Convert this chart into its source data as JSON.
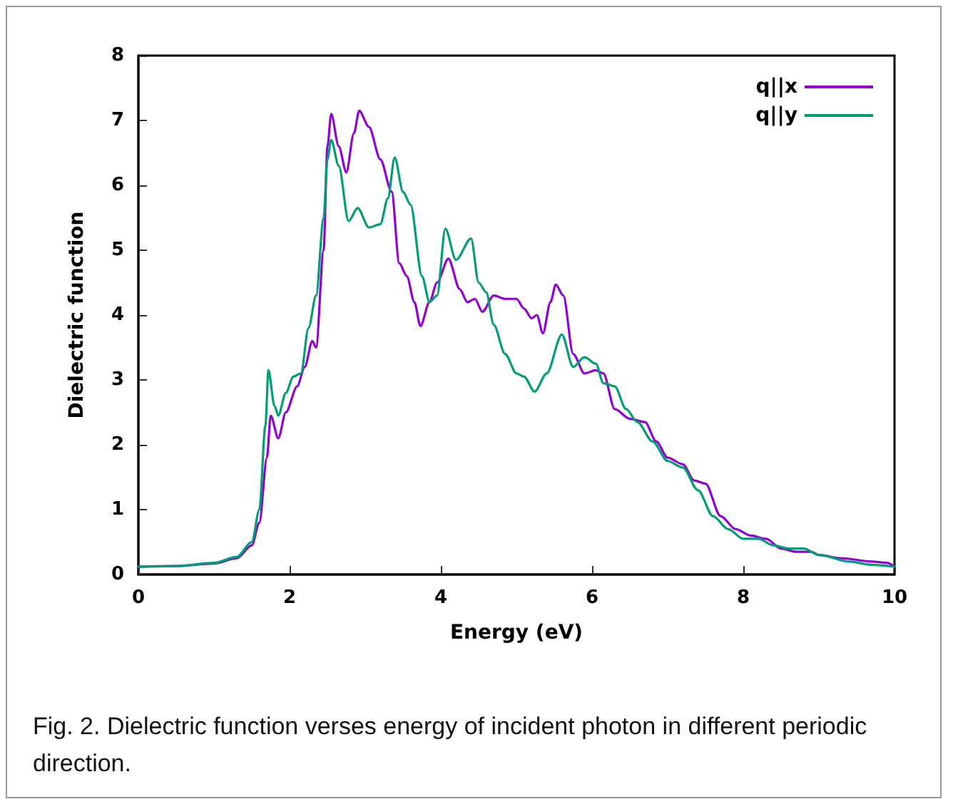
{
  "chart_data": {
    "type": "line",
    "xlabel": "Energy (eV)",
    "ylabel": "Dielectric function",
    "xlim": [
      0,
      10
    ],
    "xticks": [
      0,
      2,
      4,
      6,
      8,
      10
    ],
    "ylim": [
      0,
      8
    ],
    "yticks": [
      0,
      1,
      2,
      3,
      4,
      5,
      6,
      7,
      8
    ],
    "legend": "top right",
    "grid": false,
    "marker": "none",
    "line_style": "solid",
    "annotations": [
      "Fig. 2. Dielectric function verses energy of incident photon in different periodic direction."
    ],
    "series": [
      {
        "name": "q||x",
        "color": "#9400d3",
        "x": [
          0,
          0.5,
          1.0,
          1.3,
          1.5,
          1.6,
          1.7,
          1.75,
          1.85,
          1.95,
          2.1,
          2.2,
          2.3,
          2.35,
          2.45,
          2.5,
          2.55,
          2.65,
          2.75,
          2.85,
          2.92,
          3.05,
          3.2,
          3.35,
          3.45,
          3.55,
          3.65,
          3.73,
          3.85,
          3.95,
          4.1,
          4.25,
          4.35,
          4.45,
          4.55,
          4.7,
          4.85,
          5.0,
          5.1,
          5.2,
          5.27,
          5.35,
          5.45,
          5.52,
          5.62,
          5.75,
          5.9,
          6.05,
          6.15,
          6.3,
          6.5,
          6.7,
          6.85,
          7.0,
          7.2,
          7.35,
          7.5,
          7.7,
          7.9,
          8.1,
          8.3,
          8.5,
          8.7,
          8.9,
          9.0,
          9.3,
          9.7,
          9.9,
          10
        ],
        "values": [
          0.12,
          0.13,
          0.17,
          0.25,
          0.45,
          0.8,
          1.8,
          2.45,
          2.1,
          2.5,
          2.9,
          3.2,
          3.6,
          3.5,
          5.0,
          6.6,
          7.1,
          6.6,
          6.2,
          6.8,
          7.15,
          6.9,
          6.4,
          5.9,
          4.8,
          4.6,
          4.2,
          3.83,
          4.2,
          4.5,
          4.87,
          4.4,
          4.2,
          4.25,
          4.05,
          4.3,
          4.25,
          4.25,
          4.1,
          3.95,
          4.0,
          3.72,
          4.2,
          4.47,
          4.3,
          3.4,
          3.1,
          3.15,
          3.1,
          2.55,
          2.4,
          2.35,
          2.05,
          1.8,
          1.7,
          1.45,
          1.4,
          0.9,
          0.7,
          0.6,
          0.55,
          0.4,
          0.35,
          0.35,
          0.3,
          0.25,
          0.2,
          0.18,
          0.12
        ]
      },
      {
        "name": "q||y",
        "color": "#009e73",
        "x": [
          0,
          0.5,
          1.0,
          1.3,
          1.5,
          1.6,
          1.68,
          1.72,
          1.8,
          1.85,
          1.95,
          2.05,
          2.15,
          2.25,
          2.35,
          2.45,
          2.5,
          2.55,
          2.65,
          2.78,
          2.9,
          3.05,
          3.2,
          3.3,
          3.39,
          3.5,
          3.6,
          3.75,
          3.85,
          3.95,
          4.06,
          4.2,
          4.4,
          4.5,
          4.6,
          4.7,
          4.85,
          5.0,
          5.1,
          5.24,
          5.4,
          5.6,
          5.75,
          5.9,
          6.05,
          6.15,
          6.3,
          6.45,
          6.6,
          6.8,
          7.0,
          7.2,
          7.4,
          7.6,
          7.8,
          8.0,
          8.2,
          8.4,
          8.6,
          8.8,
          9.0,
          9.4,
          9.7,
          10
        ],
        "values": [
          0.12,
          0.13,
          0.18,
          0.27,
          0.5,
          1.0,
          2.3,
          3.15,
          2.6,
          2.45,
          2.8,
          3.05,
          3.1,
          3.8,
          4.3,
          5.5,
          6.4,
          6.7,
          6.3,
          5.45,
          5.65,
          5.35,
          5.4,
          5.8,
          6.43,
          5.9,
          5.7,
          4.6,
          4.2,
          4.3,
          5.33,
          4.85,
          5.18,
          4.5,
          4.35,
          3.85,
          3.4,
          3.1,
          3.05,
          2.82,
          3.1,
          3.7,
          3.2,
          3.35,
          3.25,
          2.95,
          2.9,
          2.55,
          2.35,
          2.05,
          1.75,
          1.65,
          1.3,
          0.9,
          0.7,
          0.55,
          0.55,
          0.45,
          0.4,
          0.4,
          0.3,
          0.2,
          0.15,
          0.12
        ]
      }
    ]
  }
}
